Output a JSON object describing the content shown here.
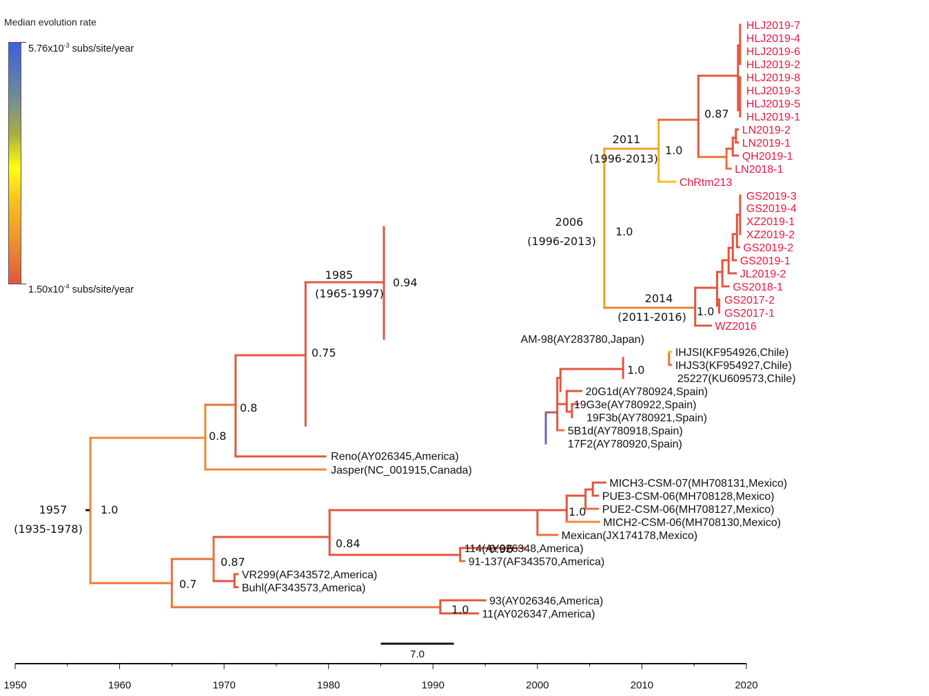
{
  "legend": {
    "title": "Median evolution rate",
    "max_label_prefix": "5.76x10",
    "max_label_exp": "-3",
    "max_label_suffix": " subs/site/year",
    "min_label_prefix": "1.50x10",
    "min_label_exp": "-4",
    "min_label_suffix": " subs/site/year",
    "colors": {
      "high": "#3a5fdc",
      "mid": "#ffff10",
      "low": "#e3553e"
    }
  },
  "scale_bar": {
    "label": "7.0",
    "years": 7.0
  },
  "colors": {
    "novel_tip": "#f0143c",
    "reference_tip": "#111111"
  },
  "chart_data": {
    "type": "phylogenetic-tree",
    "title": "",
    "xlabel": "",
    "x_axis": {
      "range": [
        1950,
        2020
      ],
      "ticks": [
        1950,
        1960,
        1970,
        1980,
        1990,
        2000,
        2010,
        2020
      ],
      "minor_step": 5
    },
    "root": {
      "age": 1957,
      "hpd": "(1935-1978)",
      "posterior": "1.0"
    },
    "node_annotations": [
      {
        "id": "root",
        "age_label": "1957",
        "hpd": "(1935-1978)",
        "posterior": "1.0"
      },
      {
        "id": "n1985",
        "age_label": "1985",
        "hpd": "(1965-1997)",
        "posterior": "0.94"
      },
      {
        "id": "n2006",
        "age_label": "2006",
        "hpd": "(1996-2013)",
        "posterior": "1.0"
      },
      {
        "id": "n2011",
        "age_label": "2011",
        "hpd": "(1996-2013)",
        "posterior": "1.0"
      },
      {
        "id": "n2014",
        "age_label": "2014",
        "hpd": "(2011-2016)",
        "posterior": "1.0"
      },
      {
        "id": "hlj",
        "posterior": "0.87"
      },
      {
        "id": "chile",
        "posterior": "1.0"
      },
      {
        "id": "n075",
        "posterior": "0.75"
      },
      {
        "id": "n08a",
        "posterior": "0.8"
      },
      {
        "id": "n08b",
        "posterior": "0.8"
      },
      {
        "id": "mex",
        "posterior": "1.0"
      },
      {
        "id": "n084",
        "posterior": "0.84"
      },
      {
        "id": "n096",
        "posterior": "0.96"
      },
      {
        "id": "n087b",
        "posterior": "0.87"
      },
      {
        "id": "n07",
        "posterior": "0.7"
      },
      {
        "id": "n93",
        "posterior": "1.0"
      }
    ],
    "tips": [
      {
        "label": "HLJ2019-7",
        "novel": true
      },
      {
        "label": "HLJ2019-4",
        "novel": true
      },
      {
        "label": "HLJ2019-6",
        "novel": true
      },
      {
        "label": "HLJ2019-2",
        "novel": true
      },
      {
        "label": "HLJ2019-8",
        "novel": true
      },
      {
        "label": "HLJ2019-3",
        "novel": true
      },
      {
        "label": "HLJ2019-5",
        "novel": true
      },
      {
        "label": "HLJ2019-1",
        "novel": true
      },
      {
        "label": "LN2019-2",
        "novel": true
      },
      {
        "label": "LN2019-1",
        "novel": true
      },
      {
        "label": "QH2019-1",
        "novel": true
      },
      {
        "label": "LN2018-1",
        "novel": true
      },
      {
        "label": "ChRtm213",
        "novel": true
      },
      {
        "label": "GS2019-3",
        "novel": true
      },
      {
        "label": "GS2019-4",
        "novel": true
      },
      {
        "label": "XZ2019-1",
        "novel": true
      },
      {
        "label": "XZ2019-2",
        "novel": true
      },
      {
        "label": "GS2019-2",
        "novel": true
      },
      {
        "label": "GS2019-1",
        "novel": true
      },
      {
        "label": "JL2019-2",
        "novel": true
      },
      {
        "label": "GS2018-1",
        "novel": true
      },
      {
        "label": "GS2017-2",
        "novel": true
      },
      {
        "label": "GS2017-1",
        "novel": true
      },
      {
        "label": "WZ2016",
        "novel": true
      },
      {
        "label": "AM-98(AY283780,Japan)",
        "novel": false
      },
      {
        "label": "IHJSI(KF954926,Chile)",
        "novel": false
      },
      {
        "label": "IHJS3(KF954927,Chile)",
        "novel": false
      },
      {
        "label": "25227(KU609573,Chile)",
        "novel": false
      },
      {
        "label": "20G1d(AY780924,Spain)",
        "novel": false
      },
      {
        "label": "19G3e(AY780922,Spain)",
        "novel": false
      },
      {
        "label": "19F3b(AY780921,Spain)",
        "novel": false
      },
      {
        "label": "5B1d(AY780918,Spain)",
        "novel": false
      },
      {
        "label": "17F2(AY780920,Spain)",
        "novel": false
      },
      {
        "label": "Reno(AY026345,America)",
        "novel": false
      },
      {
        "label": "Jasper(NC_001915,Canada)",
        "novel": false
      },
      {
        "label": "MICH3-CSM-07(MH708131,Mexico)",
        "novel": false
      },
      {
        "label": "PUE3-CSM-06(MH708128,Mexico)",
        "novel": false
      },
      {
        "label": "PUE2-CSM-06(MH708127,Mexico)",
        "novel": false
      },
      {
        "label": "MICH2-CSM-06(MH708130,Mexico)",
        "novel": false
      },
      {
        "label": "Mexican(JX174178,Mexico)",
        "novel": false
      },
      {
        "label": "114(AY026348,America)",
        "novel": false
      },
      {
        "label": "91-137(AF343570,America)",
        "novel": false
      },
      {
        "label": "VR299(AF343572,America)",
        "novel": false
      },
      {
        "label": "Buhl(AF343573,America)",
        "novel": false
      },
      {
        "label": "93(AY026346,America)",
        "novel": false
      },
      {
        "label": "11(AY026347,America)",
        "novel": false
      }
    ]
  }
}
